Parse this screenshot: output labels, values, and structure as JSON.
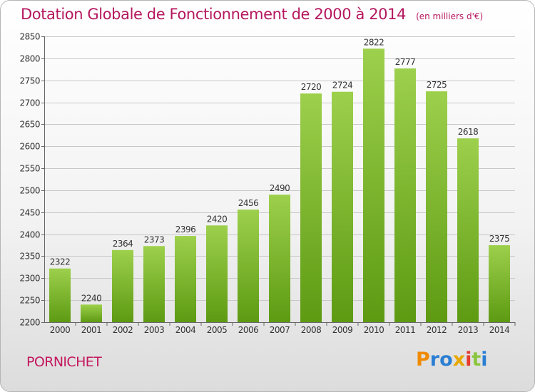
{
  "title": "Dotation Globale de Fonctionnement de 2000 à 2014",
  "subtitle": "(en milliers d'€)",
  "town": "PORNICHET",
  "logo": {
    "letters": [
      "P",
      "r",
      "o",
      "x",
      "i",
      "t",
      "i"
    ],
    "colors": [
      "#f08a00",
      "#2b7fd3",
      "#2b7fd3",
      "#e8a800",
      "#e53a2c",
      "#8bc53f",
      "#2b7fd3"
    ]
  },
  "colors": {
    "title": "#b5175e",
    "bar_top": "#9dd04c",
    "bar_bottom": "#5d9a12",
    "grid": "#c8c8c8",
    "axis": "#666666"
  },
  "chart_data": {
    "type": "bar",
    "title": "Dotation Globale de Fonctionnement de 2000 à 2014",
    "xlabel": "",
    "ylabel": "",
    "ylim": [
      2200,
      2850
    ],
    "yticks": [
      2200,
      2250,
      2300,
      2350,
      2400,
      2450,
      2500,
      2550,
      2600,
      2650,
      2700,
      2750,
      2800,
      2850
    ],
    "categories": [
      "2000",
      "2001",
      "2002",
      "2003",
      "2004",
      "2005",
      "2006",
      "2007",
      "2008",
      "2009",
      "2010",
      "2011",
      "2012",
      "2013",
      "2014"
    ],
    "values": [
      2322,
      2240,
      2364,
      2373,
      2396,
      2420,
      2456,
      2490,
      2720,
      2724,
      2822,
      2777,
      2725,
      2618,
      2375
    ],
    "grid": true
  }
}
